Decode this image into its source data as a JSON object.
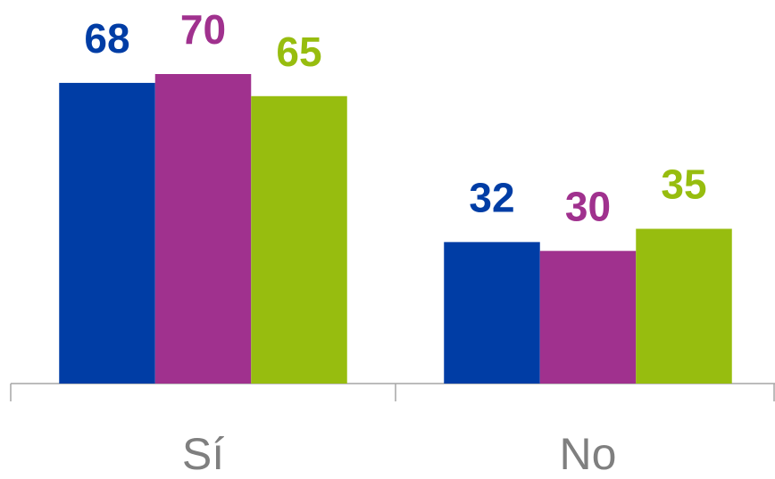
{
  "chart_data": {
    "type": "bar",
    "categories": [
      "Sí",
      "No"
    ],
    "series": [
      {
        "color": "#003da5",
        "values": [
          68,
          32
        ]
      },
      {
        "color": "#a0318e",
        "values": [
          70,
          30
        ]
      },
      {
        "color": "#97bd0f",
        "values": [
          65,
          35
        ]
      }
    ]
  }
}
